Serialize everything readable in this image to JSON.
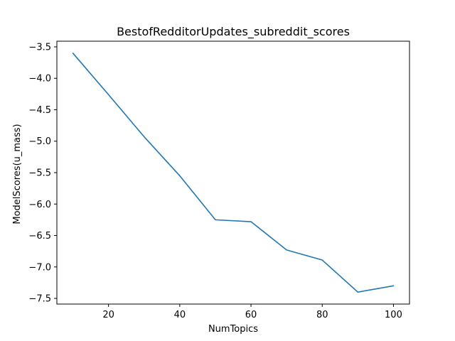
{
  "chart_data": {
    "type": "line",
    "title": "BestofRedditorUpdates_subreddit_scores",
    "xlabel": "NumTopics",
    "ylabel": "ModelScores(u_mass)",
    "x": [
      10,
      20,
      30,
      40,
      50,
      60,
      70,
      80,
      90,
      100
    ],
    "series": [
      {
        "values": [
          -3.6,
          -4.26,
          -4.93,
          -5.55,
          -6.25,
          -6.28,
          -6.73,
          -6.89,
          -7.4,
          -7.3
        ],
        "color": "#1f77b4"
      }
    ],
    "xlim": [
      5.5,
      104.5
    ],
    "ylim": [
      -7.59,
      -3.41
    ],
    "xticks": [
      20,
      40,
      60,
      80,
      100
    ],
    "xtick_labels": [
      "20",
      "40",
      "60",
      "80",
      "100"
    ],
    "yticks": [
      -3.5,
      -4.0,
      -4.5,
      -5.0,
      -5.5,
      -6.0,
      -6.5,
      -7.0,
      -7.5
    ],
    "ytick_labels": [
      "−3.5",
      "−4.0",
      "−4.5",
      "−5.0",
      "−5.5",
      "−6.0",
      "−6.5",
      "−7.0",
      "−7.5"
    ],
    "grid": false,
    "legend": "none"
  }
}
